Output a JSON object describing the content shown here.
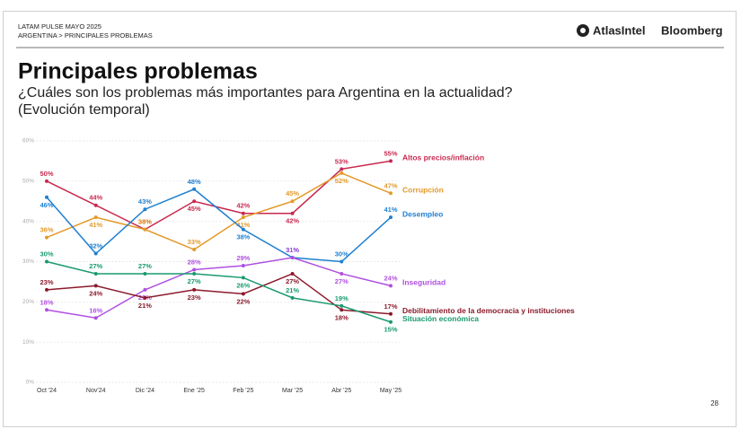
{
  "header": {
    "line1": "LATAM PULSE MAYO 2025",
    "line2": "ARGENTINA > PRINCIPALES PROBLEMAS",
    "logo1": "AtlasIntel",
    "logo2": "Bloomberg"
  },
  "page_number": "28",
  "chart_data": {
    "type": "line",
    "title": "Principales problemas",
    "subtitle": [
      "¿Cuáles son los problemas más importantes para Argentina en la actualidad?",
      "(Evolución temporal)"
    ],
    "categories": [
      "Oct '24",
      "Nov'24",
      "Dic '24",
      "Ene '25",
      "Feb '25",
      "Mar '25",
      "Abr '25",
      "May '25"
    ],
    "ylim": [
      0,
      60
    ],
    "yticks": [
      {
        "value": 0,
        "label": "0%"
      },
      {
        "value": 10,
        "label": "10%"
      },
      {
        "value": 20,
        "label": "20%"
      },
      {
        "value": 30,
        "label": "30%"
      },
      {
        "value": 40,
        "label": "40%"
      },
      {
        "value": 50,
        "label": "50%"
      },
      {
        "value": 60,
        "label": "60%"
      }
    ],
    "grid": true,
    "series": [
      {
        "name": "Altos precios/inflación",
        "color": "#c8294f",
        "values": [
          50,
          44,
          38,
          45,
          42,
          42,
          53,
          55
        ],
        "value_labels": [
          "50%",
          "44%",
          "38%",
          "45%",
          "42%",
          "42%",
          "53%",
          "55%"
        ]
      },
      {
        "name": "Corrupción",
        "color": "#e39a2a",
        "values": [
          36,
          41,
          38,
          33,
          41,
          45,
          52,
          47
        ],
        "value_labels": [
          "36%",
          "41%",
          "38%",
          "33%",
          "41%",
          "45%",
          "52%",
          "47%"
        ]
      },
      {
        "name": "Desempleo",
        "color": "#1f7fd0",
        "values": [
          46,
          32,
          43,
          48,
          38,
          31,
          30,
          41
        ],
        "value_labels": [
          "46%",
          "32%",
          "43%",
          "48%",
          "38%",
          "31%",
          "30%",
          "41%"
        ]
      },
      {
        "name": "Inseguridad",
        "color": "#b04fe0",
        "values": [
          18,
          16,
          23,
          28,
          29,
          31,
          27,
          24
        ],
        "value_labels": [
          "18%",
          "16%",
          "23%",
          "28%",
          "29%",
          "31%",
          "27%",
          "24%"
        ]
      },
      {
        "name": "Debilitamiento de la democracia y instituciones",
        "color": "#8b1a2b",
        "values": [
          23,
          24,
          21,
          23,
          22,
          27,
          18,
          17
        ],
        "value_labels": [
          "23%",
          "24%",
          "21%",
          "23%",
          "22%",
          "27%",
          "18%",
          "17%"
        ]
      },
      {
        "name": "Situación económica",
        "color": "#1a9a70",
        "values": [
          30,
          27,
          27,
          27,
          26,
          21,
          19,
          15
        ],
        "value_labels": [
          "30%",
          "27%",
          "27%",
          "27%",
          "26%",
          "21%",
          "19%",
          "15%"
        ]
      }
    ]
  }
}
